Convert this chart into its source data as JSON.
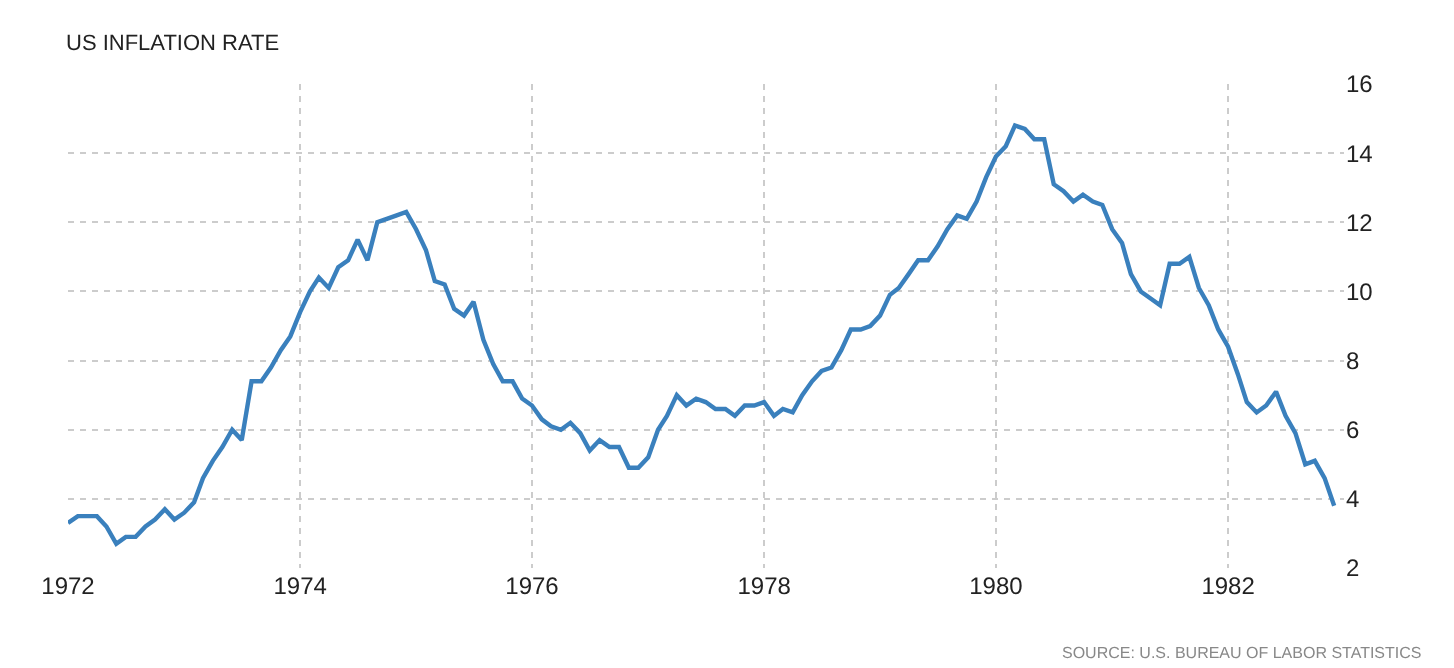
{
  "chart_data": {
    "type": "line",
    "title": "US INFLATION RATE",
    "annotations": [
      "SOURCE: U.S. BUREAU OF LABOR STATISTICS"
    ],
    "x": [
      "1972-01",
      "1972-02",
      "1972-03",
      "1972-04",
      "1972-05",
      "1972-06",
      "1972-07",
      "1972-08",
      "1972-09",
      "1972-10",
      "1972-11",
      "1972-12",
      "1973-01",
      "1973-02",
      "1973-03",
      "1973-04",
      "1973-05",
      "1973-06",
      "1973-07",
      "1973-08",
      "1973-09",
      "1973-10",
      "1973-11",
      "1973-12",
      "1974-01",
      "1974-02",
      "1974-03",
      "1974-04",
      "1974-05",
      "1974-06",
      "1974-07",
      "1974-08",
      "1974-09",
      "1974-10",
      "1974-11",
      "1974-12",
      "1975-01",
      "1975-02",
      "1975-03",
      "1975-04",
      "1975-05",
      "1975-06",
      "1975-07",
      "1975-08",
      "1975-09",
      "1975-10",
      "1975-11",
      "1975-12",
      "1976-01",
      "1976-02",
      "1976-03",
      "1976-04",
      "1976-05",
      "1976-06",
      "1976-07",
      "1976-08",
      "1976-09",
      "1976-10",
      "1976-11",
      "1976-12",
      "1977-01",
      "1977-02",
      "1977-03",
      "1977-04",
      "1977-05",
      "1977-06",
      "1977-07",
      "1977-08",
      "1977-09",
      "1977-10",
      "1977-11",
      "1977-12",
      "1978-01",
      "1978-02",
      "1978-03",
      "1978-04",
      "1978-05",
      "1978-06",
      "1978-07",
      "1978-08",
      "1978-09",
      "1978-10",
      "1978-11",
      "1978-12",
      "1979-01",
      "1979-02",
      "1979-03",
      "1979-04",
      "1979-05",
      "1979-06",
      "1979-07",
      "1979-08",
      "1979-09",
      "1979-10",
      "1979-11",
      "1979-12",
      "1980-01",
      "1980-02",
      "1980-03",
      "1980-04",
      "1980-05",
      "1980-06",
      "1980-07",
      "1980-08",
      "1980-09",
      "1980-10",
      "1980-11",
      "1980-12",
      "1981-01",
      "1981-02",
      "1981-03",
      "1981-04",
      "1981-05",
      "1981-06",
      "1981-07",
      "1981-08",
      "1981-09",
      "1981-10",
      "1981-11",
      "1981-12",
      "1982-01",
      "1982-02",
      "1982-03",
      "1982-04",
      "1982-05",
      "1982-06",
      "1982-07",
      "1982-08",
      "1982-09",
      "1982-10",
      "1982-11",
      "1982-12"
    ],
    "series": [
      {
        "color": "#3a80bd",
        "values": [
          3.3,
          3.5,
          3.5,
          3.5,
          3.2,
          2.7,
          2.9,
          2.9,
          3.2,
          3.4,
          3.7,
          3.4,
          3.6,
          3.9,
          4.6,
          5.1,
          5.5,
          6.0,
          5.7,
          7.4,
          7.4,
          7.8,
          8.3,
          8.7,
          9.4,
          10.0,
          10.4,
          10.1,
          10.7,
          10.9,
          11.5,
          10.9,
          12.0,
          12.1,
          12.2,
          12.3,
          11.8,
          11.2,
          10.3,
          10.2,
          9.5,
          9.3,
          9.7,
          8.6,
          7.9,
          7.4,
          7.4,
          6.9,
          6.7,
          6.3,
          6.1,
          6.0,
          6.2,
          5.9,
          5.4,
          5.7,
          5.5,
          5.5,
          4.9,
          4.9,
          5.2,
          6.0,
          6.4,
          7.0,
          6.7,
          6.9,
          6.8,
          6.6,
          6.6,
          6.4,
          6.7,
          6.7,
          6.8,
          6.4,
          6.6,
          6.5,
          7.0,
          7.4,
          7.7,
          7.8,
          8.3,
          8.9,
          8.9,
          9.0,
          9.3,
          9.9,
          10.1,
          10.5,
          10.9,
          10.9,
          11.3,
          11.8,
          12.2,
          12.1,
          12.6,
          13.3,
          13.9,
          14.2,
          14.8,
          14.7,
          14.4,
          14.4,
          13.1,
          12.9,
          12.6,
          12.8,
          12.6,
          12.5,
          11.8,
          11.4,
          10.5,
          10.0,
          9.8,
          9.6,
          10.8,
          10.8,
          11.0,
          10.1,
          9.6,
          8.9,
          8.4,
          7.6,
          6.8,
          6.5,
          6.7,
          7.1,
          6.4,
          5.9,
          5.0,
          5.1,
          4.6,
          3.8
        ]
      }
    ],
    "xlim": [
      "1972-01",
      "1983-01"
    ],
    "xticks": [
      "1972",
      "1974",
      "1976",
      "1978",
      "1980",
      "1982"
    ],
    "ylim": [
      2,
      16
    ],
    "yticks": [
      2,
      4,
      6,
      8,
      10,
      12,
      14,
      16
    ],
    "grid": true,
    "marker": "none",
    "line_style": "solid"
  }
}
